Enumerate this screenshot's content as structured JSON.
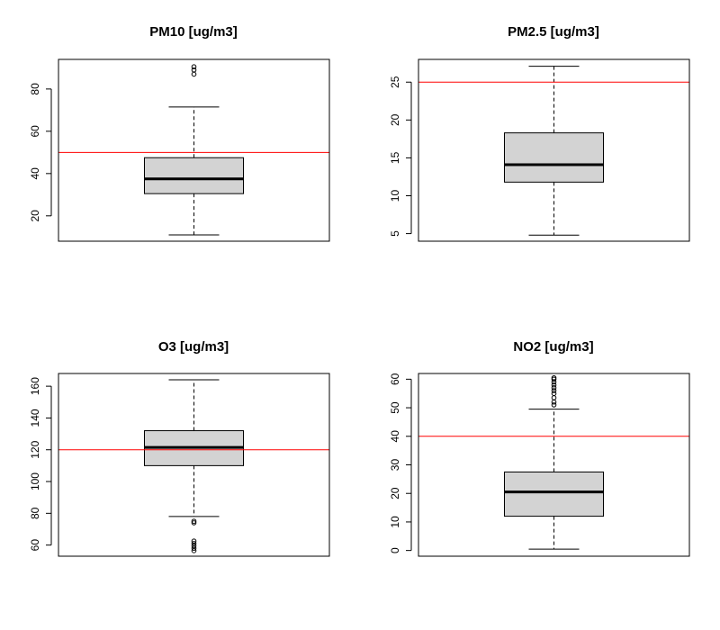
{
  "chart_data": [
    {
      "type": "boxplot",
      "title": "PM10 [ug/m3]",
      "ylim": [
        8,
        94
      ],
      "yticks": [
        20,
        40,
        60,
        80
      ],
      "box": {
        "whisker_low": 11,
        "q1": 30.5,
        "median": 37.5,
        "q3": 47.5,
        "whisker_high": 71.5
      },
      "outliers": [
        87,
        89,
        90.5
      ],
      "reference_line": {
        "value": 50,
        "color": "#ff0000"
      },
      "box_color": "#d3d3d3"
    },
    {
      "type": "boxplot",
      "title": "PM2.5 [ug/m3]",
      "ylim": [
        4,
        28
      ],
      "yticks": [
        5,
        10,
        15,
        20,
        25
      ],
      "box": {
        "whisker_low": 4.8,
        "q1": 11.8,
        "median": 14.1,
        "q3": 18.3,
        "whisker_high": 27.1
      },
      "outliers": [],
      "reference_line": {
        "value": 25,
        "color": "#ff0000"
      },
      "box_color": "#d3d3d3"
    },
    {
      "type": "boxplot",
      "title": "O3 [ug/m3]",
      "ylim": [
        53,
        168
      ],
      "yticks": [
        60,
        80,
        100,
        120,
        140,
        160
      ],
      "box": {
        "whisker_low": 78,
        "q1": 110,
        "median": 121.5,
        "q3": 132,
        "whisker_high": 164
      },
      "outliers": [
        74,
        75,
        56.5,
        58,
        59.5,
        61,
        62.5
      ],
      "reference_line": {
        "value": 120,
        "color": "#ff0000"
      },
      "box_color": "#d3d3d3"
    },
    {
      "type": "boxplot",
      "title": "NO2 [ug/m3]",
      "ylim": [
        -2,
        62
      ],
      "yticks": [
        0,
        10,
        20,
        30,
        40,
        50,
        60
      ],
      "box": {
        "whisker_low": 0.5,
        "q1": 12,
        "median": 20.5,
        "q3": 27.5,
        "whisker_high": 49.5
      },
      "outliers": [
        51,
        52,
        53.5,
        55,
        56,
        57,
        58,
        59,
        60,
        60.5
      ],
      "reference_line": {
        "value": 40,
        "color": "#ff0000"
      },
      "box_color": "#d3d3d3"
    }
  ]
}
